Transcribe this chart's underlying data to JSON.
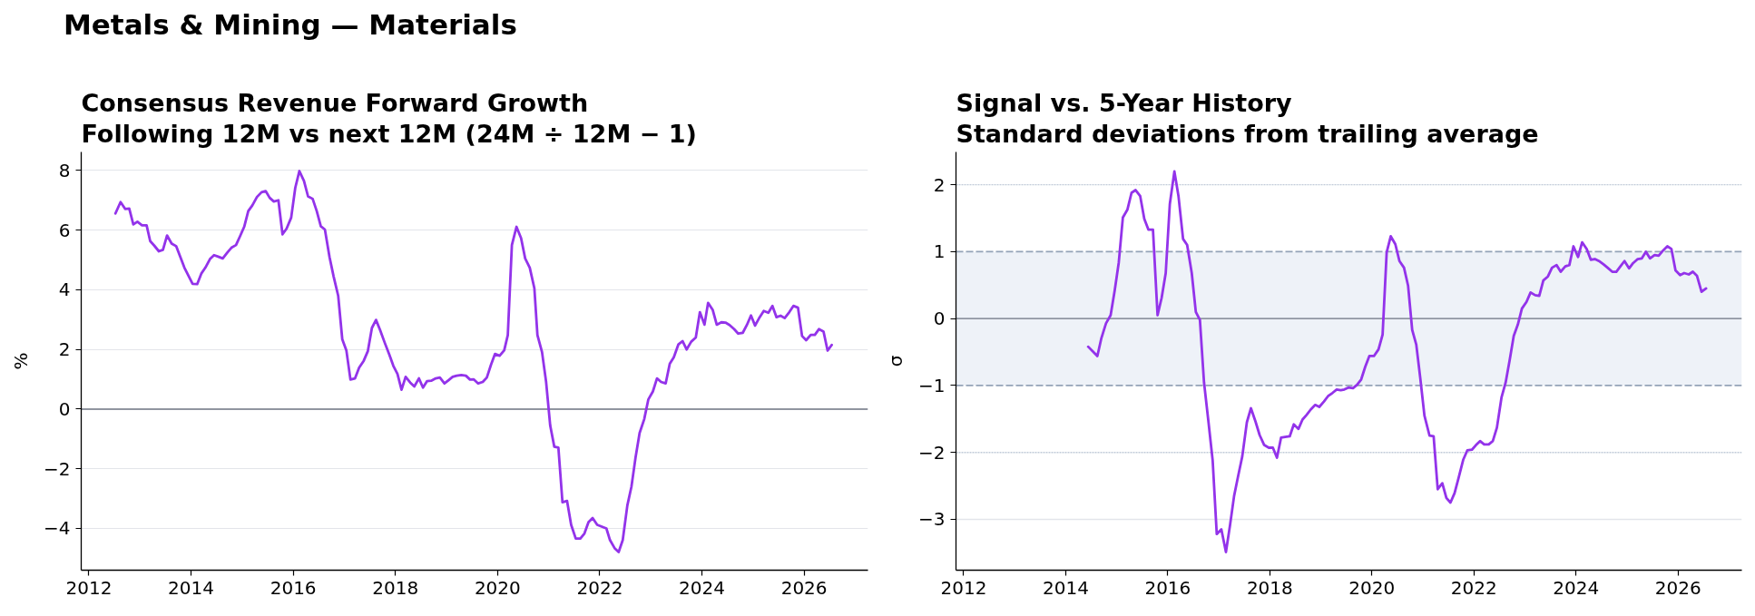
{
  "chart_data": [
    {
      "type": "line",
      "title": "Consensus Revenue Forward Growth",
      "subtitle": "Following 12M vs next 12M (24M ÷ 12M − 1)",
      "ylabel": "%",
      "annotations": [
        "Metals & Mining — Materials"
      ],
      "x": [
        2012.52,
        2012.62,
        2012.71,
        2012.79,
        2012.87,
        2012.95,
        2013.04,
        2013.13,
        2013.2,
        2013.28,
        2013.37,
        2013.45,
        2013.53,
        2013.62,
        2013.71,
        2013.87,
        2014.03,
        2014.12,
        2014.2,
        2014.28,
        2014.37,
        2014.45,
        2014.53,
        2014.62,
        2014.71,
        2014.79,
        2014.88,
        2014.96,
        2015.04,
        2015.12,
        2015.2,
        2015.29,
        2015.38,
        2015.46,
        2015.54,
        2015.62,
        2015.71,
        2015.79,
        2015.87,
        2015.96,
        2016.04,
        2016.12,
        2016.21,
        2016.29,
        2016.38,
        2016.46,
        2016.54,
        2016.62,
        2016.71,
        2016.79,
        2016.88,
        2016.96,
        2017.04,
        2017.12,
        2017.21,
        2017.29,
        2017.38,
        2017.46,
        2017.54,
        2017.62,
        2017.7,
        2017.79,
        2017.88,
        2017.96,
        2018.04,
        2018.12,
        2018.2,
        2018.29,
        2018.37,
        2018.46,
        2018.54,
        2018.62,
        2018.7,
        2018.79,
        2018.87,
        2018.96,
        2019.04,
        2019.12,
        2019.2,
        2019.29,
        2019.38,
        2019.46,
        2019.53,
        2019.62,
        2019.71,
        2019.79,
        2019.87,
        2019.95,
        2020.04,
        2020.13,
        2020.2,
        2020.28,
        2020.37,
        2020.46,
        2020.54,
        2020.63,
        2020.72,
        2020.78,
        2020.87,
        2020.95,
        2021.03,
        2021.11,
        2021.19,
        2021.27,
        2021.36,
        2021.44,
        2021.53,
        2021.62,
        2021.7,
        2021.78,
        2021.86,
        2021.95,
        2022.04,
        2022.13,
        2022.2,
        2022.29,
        2022.37,
        2022.45,
        2022.54,
        2022.62,
        2022.7,
        2022.78,
        2022.87,
        2022.95,
        2023.04,
        2023.12,
        2023.2,
        2023.29,
        2023.37,
        2023.45,
        2023.54,
        2023.62,
        2023.7,
        2023.79,
        2023.88,
        2023.96,
        2024.05,
        2024.12,
        2024.21,
        2024.29,
        2024.38,
        2024.46,
        2024.54,
        2024.63,
        2024.71,
        2024.8,
        2024.88,
        2024.96,
        2025.04,
        2025.13,
        2025.21,
        2025.3,
        2025.38,
        2025.46,
        2025.54,
        2025.62,
        2025.71,
        2025.79,
        2025.88,
        2025.96,
        2026.04,
        2026.13,
        2026.21,
        2026.29,
        2026.38,
        2026.46,
        2026.54
      ],
      "series": [
        {
          "color": "#9333ea",
          "values": [
            6.56,
            6.94,
            6.71,
            6.72,
            6.19,
            6.28,
            6.16,
            6.16,
            5.63,
            5.48,
            5.29,
            5.34,
            5.82,
            5.55,
            5.46,
            4.74,
            4.2,
            4.19,
            4.54,
            4.74,
            5.03,
            5.16,
            5.11,
            5.05,
            5.25,
            5.41,
            5.5,
            5.8,
            6.11,
            6.64,
            6.83,
            7.11,
            7.27,
            7.31,
            7.08,
            6.96,
            7.0,
            5.86,
            6.05,
            6.42,
            7.42,
            7.98,
            7.65,
            7.13,
            7.05,
            6.64,
            6.13,
            6.02,
            5.1,
            4.45,
            3.8,
            2.34,
            1.97,
            0.99,
            1.03,
            1.39,
            1.62,
            1.94,
            2.72,
            2.99,
            2.65,
            2.23,
            1.83,
            1.45,
            1.18,
            0.65,
            1.08,
            0.89,
            0.76,
            1.03,
            0.72,
            0.94,
            0.95,
            1.03,
            1.06,
            0.86,
            0.97,
            1.08,
            1.12,
            1.14,
            1.12,
            0.99,
            1.0,
            0.86,
            0.91,
            1.06,
            1.48,
            1.85,
            1.79,
            1.97,
            2.48,
            5.5,
            6.11,
            5.73,
            5.05,
            4.74,
            4.05,
            2.48,
            1.91,
            0.91,
            -0.55,
            -1.26,
            -1.29,
            -3.12,
            -3.08,
            -3.88,
            -4.34,
            -4.34,
            -4.17,
            -3.79,
            -3.65,
            -3.88,
            -3.94,
            -4.0,
            -4.39,
            -4.66,
            -4.79,
            -4.39,
            -3.23,
            -2.6,
            -1.63,
            -0.8,
            -0.34,
            0.32,
            0.59,
            1.03,
            0.91,
            0.86,
            1.52,
            1.74,
            2.17,
            2.28,
            2.0,
            2.26,
            2.4,
            3.25,
            2.83,
            3.56,
            3.33,
            2.83,
            2.91,
            2.9,
            2.82,
            2.68,
            2.53,
            2.56,
            2.82,
            3.14,
            2.8,
            3.08,
            3.29,
            3.23,
            3.46,
            3.08,
            3.13,
            3.05,
            3.25,
            3.46,
            3.4,
            2.45,
            2.31,
            2.49,
            2.49,
            2.68,
            2.6,
            1.96,
            2.15
          ]
        }
      ],
      "xlim": [
        2011.85,
        2027.25
      ],
      "ylim": [
        -5.4,
        8.62
      ],
      "xticks": [
        2012,
        2014,
        2016,
        2018,
        2020,
        2022,
        2024,
        2026
      ],
      "yticks": [
        {
          "value": -4,
          "label": "−4"
        },
        {
          "value": -2,
          "label": "−2"
        },
        0,
        2,
        4,
        6,
        8
      ],
      "grid": "y",
      "ref_lines": [
        {
          "axis": "y",
          "value": 0,
          "color": "#6b7280",
          "line_style": "solid"
        }
      ]
    },
    {
      "type": "line",
      "title": "Signal vs. 5-Year History",
      "subtitle": "Standard deviations from trailing average",
      "ylabel": "σ",
      "x": [
        2014.44,
        2014.53,
        2014.62,
        2014.7,
        2014.79,
        2014.88,
        2014.96,
        2015.04,
        2015.12,
        2015.21,
        2015.29,
        2015.37,
        2015.46,
        2015.54,
        2015.62,
        2015.71,
        2015.8,
        2015.88,
        2015.96,
        2016.04,
        2016.13,
        2016.21,
        2016.3,
        2016.38,
        2016.47,
        2016.55,
        2016.63,
        2016.71,
        2016.8,
        2016.88,
        2016.96,
        2017.05,
        2017.14,
        2017.22,
        2017.3,
        2017.38,
        2017.46,
        2017.55,
        2017.63,
        2017.72,
        2017.8,
        2017.89,
        2017.98,
        2018.06,
        2018.14,
        2018.22,
        2018.3,
        2018.39,
        2018.47,
        2018.56,
        2018.64,
        2018.72,
        2018.8,
        2018.89,
        2018.97,
        2019.06,
        2019.14,
        2019.23,
        2019.31,
        2019.39,
        2019.46,
        2019.54,
        2019.63,
        2019.71,
        2019.79,
        2019.87,
        2019.95,
        2020.04,
        2020.13,
        2020.21,
        2020.29,
        2020.37,
        2020.46,
        2020.54,
        2020.63,
        2020.71,
        2020.79,
        2020.87,
        2020.95,
        2021.03,
        2021.13,
        2021.21,
        2021.29,
        2021.38,
        2021.46,
        2021.54,
        2021.62,
        2021.7,
        2021.79,
        2021.87,
        2021.96,
        2022.04,
        2022.12,
        2022.2,
        2022.29,
        2022.37,
        2022.45,
        2022.54,
        2022.62,
        2022.7,
        2022.78,
        2022.86,
        2022.94,
        2023.03,
        2023.11,
        2023.2,
        2023.28,
        2023.36,
        2023.45,
        2023.53,
        2023.62,
        2023.7,
        2023.79,
        2023.87,
        2023.95,
        2024.04,
        2024.12,
        2024.21,
        2024.29,
        2024.37,
        2024.45,
        2024.54,
        2024.62,
        2024.71,
        2024.79,
        2024.87,
        2024.95,
        2025.04,
        2025.12,
        2025.21,
        2025.29,
        2025.37,
        2025.45,
        2025.54,
        2025.62,
        2025.71,
        2025.79,
        2025.87,
        2025.95,
        2026.04,
        2026.12,
        2026.21,
        2026.29,
        2026.37,
        2026.46,
        2026.55
      ],
      "series": [
        {
          "color": "#9333ea",
          "values": [
            -0.42,
            -0.49,
            -0.56,
            -0.29,
            -0.07,
            0.05,
            0.42,
            0.84,
            1.51,
            1.63,
            1.88,
            1.92,
            1.83,
            1.49,
            1.33,
            1.33,
            0.05,
            0.31,
            0.68,
            1.71,
            2.2,
            1.83,
            1.19,
            1.1,
            0.68,
            0.1,
            -0.02,
            -0.95,
            -1.56,
            -2.12,
            -3.22,
            -3.15,
            -3.49,
            -3.09,
            -2.65,
            -2.35,
            -2.06,
            -1.55,
            -1.34,
            -1.54,
            -1.74,
            -1.89,
            -1.93,
            -1.93,
            -2.08,
            -1.78,
            -1.77,
            -1.76,
            -1.58,
            -1.65,
            -1.51,
            -1.44,
            -1.36,
            -1.29,
            -1.32,
            -1.24,
            -1.16,
            -1.11,
            -1.06,
            -1.07,
            -1.06,
            -1.03,
            -1.04,
            -0.99,
            -0.91,
            -0.72,
            -0.56,
            -0.56,
            -0.46,
            -0.24,
            0.99,
            1.23,
            1.11,
            0.86,
            0.76,
            0.49,
            -0.17,
            -0.39,
            -0.9,
            -1.45,
            -1.75,
            -1.76,
            -2.55,
            -2.46,
            -2.68,
            -2.75,
            -2.61,
            -2.38,
            -2.11,
            -1.97,
            -1.96,
            -1.89,
            -1.83,
            -1.88,
            -1.88,
            -1.83,
            -1.63,
            -1.18,
            -0.96,
            -0.62,
            -0.26,
            -0.09,
            0.15,
            0.25,
            0.39,
            0.35,
            0.34,
            0.57,
            0.63,
            0.76,
            0.8,
            0.7,
            0.78,
            0.8,
            1.08,
            0.92,
            1.14,
            1.04,
            0.88,
            0.89,
            0.86,
            0.81,
            0.76,
            0.7,
            0.7,
            0.78,
            0.86,
            0.75,
            0.83,
            0.89,
            0.9,
            1.0,
            0.9,
            0.95,
            0.94,
            1.02,
            1.08,
            1.04,
            0.72,
            0.65,
            0.68,
            0.66,
            0.7,
            0.64,
            0.4,
            0.45
          ]
        }
      ],
      "xlim": [
        2011.85,
        2027.25
      ],
      "ylim": [
        -3.76,
        2.49
      ],
      "xticks": [
        2012,
        2014,
        2016,
        2018,
        2020,
        2022,
        2024,
        2026
      ],
      "yticks": [
        {
          "value": -3,
          "label": "−3"
        },
        {
          "value": -2,
          "label": "−2"
        },
        {
          "value": -1,
          "label": "−1"
        },
        0,
        1,
        2
      ],
      "bands": [
        {
          "axis": "y",
          "from": -1,
          "to": 1,
          "color": "#eef2f8"
        }
      ],
      "ref_lines": [
        {
          "axis": "y",
          "value": 0,
          "color": "#6b7280",
          "line_style": "solid"
        },
        {
          "axis": "y",
          "value": 1,
          "color": "#94a3b8",
          "line_style": "dashed"
        },
        {
          "axis": "y",
          "value": -1,
          "color": "#94a3b8",
          "line_style": "dashed"
        },
        {
          "axis": "y",
          "value": 2,
          "color": "#c0cad8",
          "line_style": "dotted"
        },
        {
          "axis": "y",
          "value": -2,
          "color": "#c0cad8",
          "line_style": "dotted"
        },
        {
          "axis": "y",
          "value": -3,
          "color": "#e3e5ea",
          "line_style": "solid"
        }
      ]
    }
  ]
}
